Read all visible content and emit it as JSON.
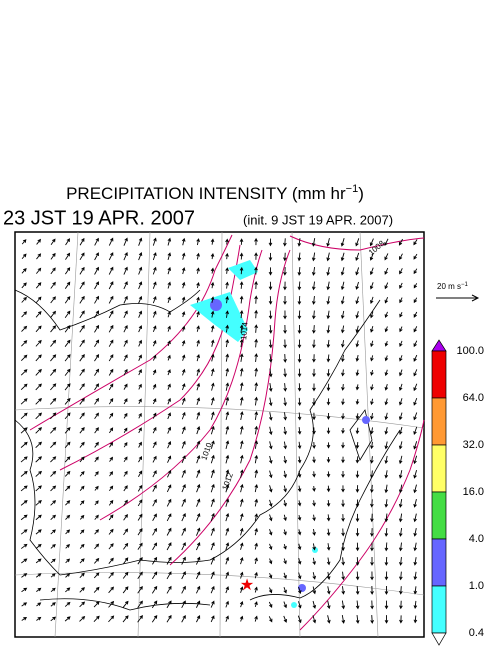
{
  "header": {
    "title": {
      "text": "PRECIPITATION INTENSITY (mm hr",
      "superscript": "−1",
      "close": ")"
    },
    "valid_time": "23 JST 19 APR. 2007",
    "init_time": "(init. 9 JST 19 APR. 2007)"
  },
  "wind_scale": {
    "text": "20 m s",
    "superscript": "−1"
  },
  "colorbar": {
    "labels": [
      "100.0",
      "64.0",
      "32.0",
      "16.0",
      "4.0",
      "1.0",
      "0.4"
    ],
    "colors": [
      "#ee0000",
      "#ff9933",
      "#ffff66",
      "#44dd44",
      "#6666ff",
      "#44ffff"
    ],
    "over_color": "#aa00ee",
    "under_color": "#ffffff"
  },
  "contour_labels": [
    "1008",
    "1010",
    "1012",
    "1014"
  ]
}
